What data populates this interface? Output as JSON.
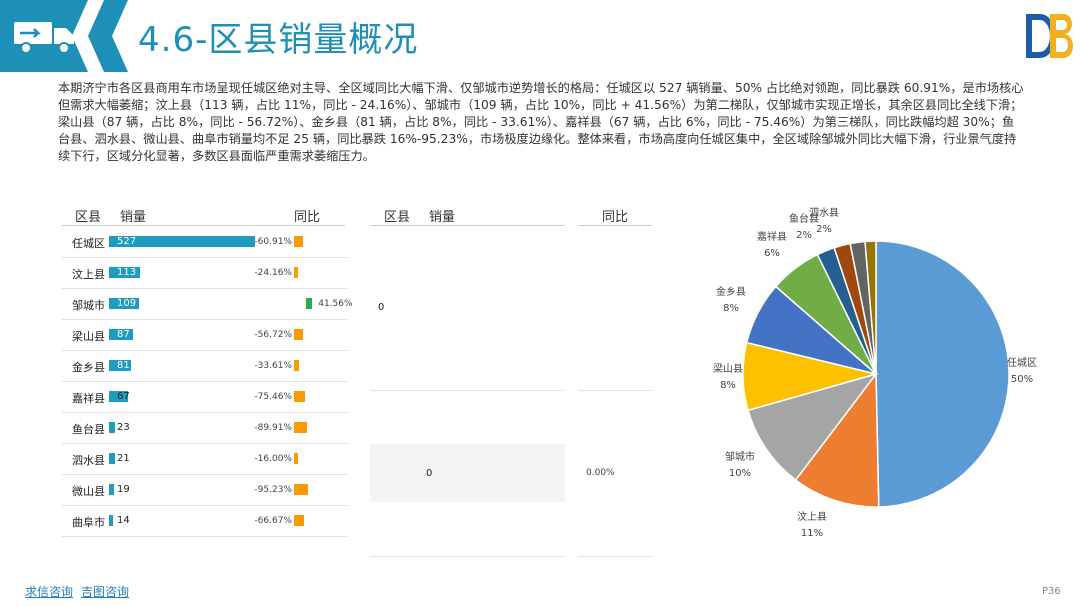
{
  "header": {
    "title": "4.6-区县销量概况"
  },
  "summary": "本期济宁市各区县商用车市场呈现任城区绝对主导、全区域同比大幅下滑、仅邹城市逆势增长的格局：任城区以 527 辆销量、50% 占比绝对领跑，同比暴跌 60.91%，是市场核心但需求大幅萎缩；汶上县（113 辆，占比 11%，同比 - 24.16%）、邹城市（109 辆，占比 10%，同比 + 41.56%）为第二梯队，仅邹城市实现正增长，其余区县同比全线下滑；梁山县（87 辆，占比 8%，同比 - 56.72%）、金乡县（81 辆，占比 8%，同比 - 33.61%）、嘉祥县（67 辆，占比 6%，同比 - 75.46%）为第三梯队，同比跌幅均超 30%；鱼台县、泗水县、微山县、曲阜市销量均不足 25 辆，同比暴跌 16%-95.23%，市场极度边缘化。整体来看，市场高度向任城区集中，全区域除邹城外同比大幅下滑，行业景气度持续下行，区域分化显著，多数区县面临严重需求萎缩压力。",
  "table_left": {
    "headers": {
      "county": "区县",
      "volume": "销量",
      "yoy": "同比"
    }
  },
  "table_right": {
    "headers": {
      "county": "区县",
      "volume": "销量",
      "yoy": "同比"
    },
    "cells": {
      "v1": "0",
      "v2": "0",
      "pct": "0.00%"
    }
  },
  "chart_data": [
    {
      "type": "table",
      "columns": [
        "区县",
        "销量",
        "同比"
      ],
      "rows": [
        {
          "county": "任城区",
          "volume": 527,
          "yoy": -60.91,
          "yoy_label": "-60.91%"
        },
        {
          "county": "汶上县",
          "volume": 113,
          "yoy": -24.16,
          "yoy_label": "-24.16%"
        },
        {
          "county": "邹城市",
          "volume": 109,
          "yoy": 41.56,
          "yoy_label": "41.56%"
        },
        {
          "county": "梁山县",
          "volume": 87,
          "yoy": -56.72,
          "yoy_label": "-56.72%"
        },
        {
          "county": "金乡县",
          "volume": 81,
          "yoy": -33.61,
          "yoy_label": "-33.61%"
        },
        {
          "county": "嘉祥县",
          "volume": 67,
          "yoy": -75.46,
          "yoy_label": "-75.46%"
        },
        {
          "county": "鱼台县",
          "volume": 23,
          "yoy": -89.91,
          "yoy_label": "-89.91%"
        },
        {
          "county": "泗水县",
          "volume": 21,
          "yoy": -16.0,
          "yoy_label": "-16.00%"
        },
        {
          "county": "微山县",
          "volume": 19,
          "yoy": -95.23,
          "yoy_label": "-95.23%"
        },
        {
          "county": "曲阜市",
          "volume": 14,
          "yoy": -66.67,
          "yoy_label": "-66.67%"
        }
      ]
    },
    {
      "type": "pie",
      "slices": [
        {
          "label": "任城区",
          "value": 527,
          "pct_label": "50%",
          "color": "#5b9bd5"
        },
        {
          "label": "汶上县",
          "value": 113,
          "pct_label": "11%",
          "color": "#ed7d31"
        },
        {
          "label": "邹城市",
          "value": 109,
          "pct_label": "10%",
          "color": "#a5a5a5"
        },
        {
          "label": "梁山县",
          "value": 87,
          "pct_label": "8%",
          "color": "#ffc000"
        },
        {
          "label": "金乡县",
          "value": 81,
          "pct_label": "8%",
          "color": "#4472c4"
        },
        {
          "label": "嘉祥县",
          "value": 67,
          "pct_label": "6%",
          "color": "#70ad47"
        },
        {
          "label": "鱼台县",
          "value": 23,
          "pct_label": "2%",
          "color": "#255e91"
        },
        {
          "label": "泗水县",
          "value": 21,
          "pct_label": "2%",
          "color": "#9e480e"
        },
        {
          "label": "微山县",
          "value": 19,
          "pct_label": "",
          "color": "#636363"
        },
        {
          "label": "曲阜市",
          "value": 14,
          "pct_label": "",
          "color": "#997300"
        }
      ]
    }
  ],
  "colors": {
    "accent": "#1e8fb6",
    "bar": "#1e9bc1",
    "neg": "#ff9900",
    "pos": "#1fb14a"
  },
  "footer": {
    "link1": "求信咨询",
    "link2": "吉图咨询",
    "page": "P36"
  }
}
